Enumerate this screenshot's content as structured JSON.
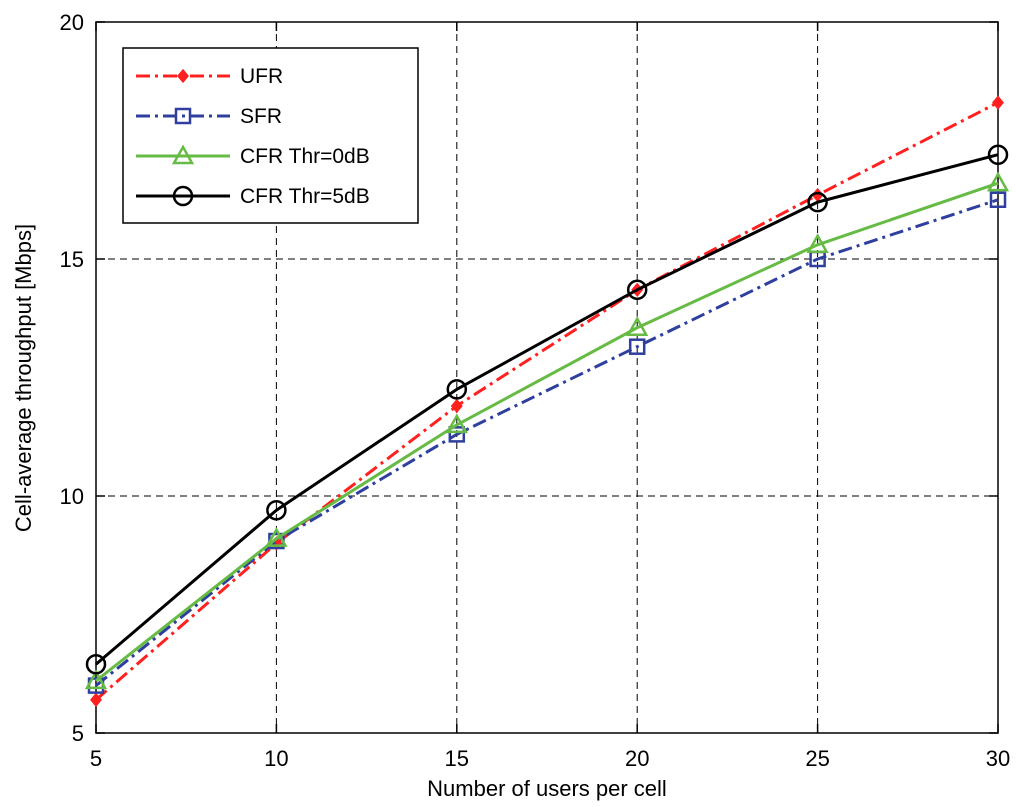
{
  "chart_data": {
    "type": "line",
    "title": "",
    "xlabel": "Number of users per cell",
    "ylabel": "Cell-average throughput [Mbps]",
    "x": [
      5,
      10,
      15,
      20,
      25,
      30
    ],
    "xlim": [
      5,
      30
    ],
    "ylim": [
      5,
      20
    ],
    "xticks": [
      5,
      10,
      15,
      20,
      25,
      30
    ],
    "yticks": [
      5,
      10,
      15,
      20
    ],
    "grid": true,
    "legend_position": "top-left",
    "series": [
      {
        "name": "UFR",
        "values": [
          5.7,
          9.0,
          11.9,
          14.35,
          16.35,
          18.3
        ],
        "color": "#ff2020",
        "line_style": "dash-dot",
        "marker": "diamond"
      },
      {
        "name": "SFR",
        "values": [
          6.0,
          9.05,
          11.3,
          13.15,
          15.0,
          16.25
        ],
        "color": "#2e3f9e",
        "line_style": "dash-dot",
        "marker": "square"
      },
      {
        "name": "CFR Thr=0dB",
        "values": [
          6.1,
          9.1,
          11.5,
          13.55,
          15.3,
          16.6
        ],
        "color": "#66bb44",
        "line_style": "solid",
        "marker": "triangle"
      },
      {
        "name": "CFR Thr=5dB",
        "values": [
          6.45,
          9.7,
          12.25,
          14.35,
          16.2,
          17.2
        ],
        "color": "#000000",
        "line_style": "solid",
        "marker": "circle"
      }
    ]
  }
}
